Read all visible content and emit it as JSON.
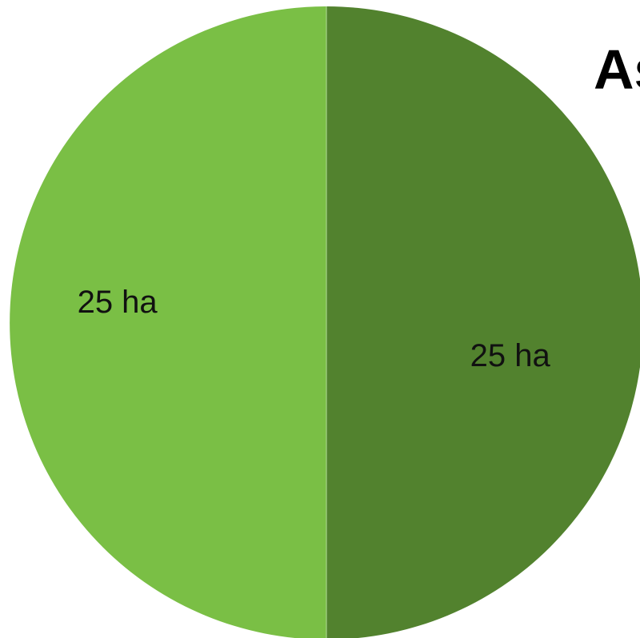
{
  "chart_data": {
    "type": "pie",
    "title": "As",
    "slices": [
      {
        "label": "25 ha",
        "value": 25,
        "color": "#52822e"
      },
      {
        "label": "25 ha",
        "value": 25,
        "color": "#7abf45"
      }
    ]
  }
}
